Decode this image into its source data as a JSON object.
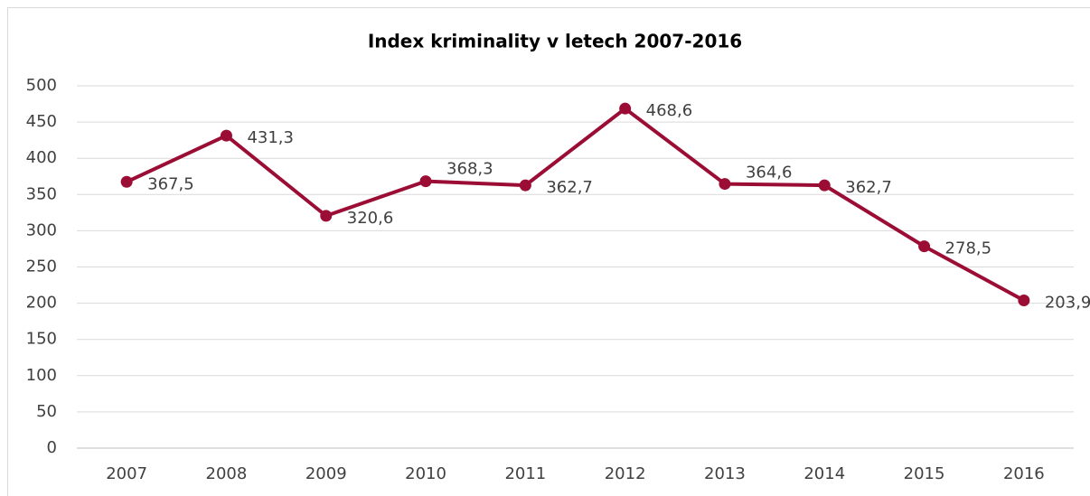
{
  "chart_data": {
    "type": "line",
    "title": "Index kriminality v letech 2007-2016",
    "categories": [
      "2007",
      "2008",
      "2009",
      "2010",
      "2011",
      "2012",
      "2013",
      "2014",
      "2015",
      "2016"
    ],
    "series": [
      {
        "name": "Index kriminality",
        "color": "#9b0d35",
        "values": [
          367.5,
          431.3,
          320.6,
          368.3,
          362.7,
          468.6,
          364.6,
          362.7,
          278.5,
          203.9
        ],
        "value_labels": [
          "367,5",
          "431,3",
          "320,6",
          "368,3",
          "362,7",
          "468,6",
          "364,6",
          "362,7",
          "278,5",
          "203,9"
        ]
      }
    ],
    "ylim": [
      0,
      500
    ],
    "yticks": [
      0,
      50,
      100,
      150,
      200,
      250,
      300,
      350,
      400,
      450,
      500
    ],
    "grid": true
  }
}
